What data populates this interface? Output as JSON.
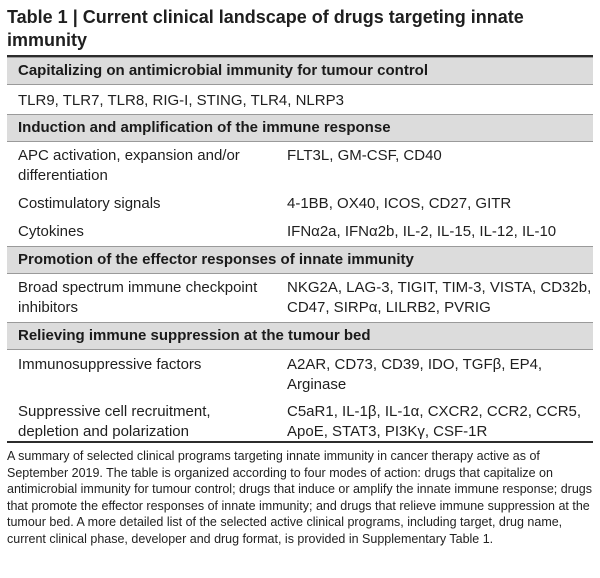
{
  "table": {
    "title": "Table 1 | Current clinical landscape of drugs targeting innate immunity",
    "sections": [
      {
        "heading": "Capitalizing on antimicrobial immunity for tumour control",
        "rows": [
          {
            "category": "",
            "agents": "TLR9, TLR7, TLR8, RIG-I, STING, TLR4, NLRP3"
          }
        ]
      },
      {
        "heading": "Induction and amplification of the immune response",
        "rows": [
          {
            "category": "APC activation, expansion and/or differentiation",
            "agents": "FLT3L, GM-CSF, CD40"
          },
          {
            "category": "Costimulatory signals",
            "agents": "4-1BB, OX40, ICOS, CD27, GITR"
          },
          {
            "category": "Cytokines",
            "agents": "IFNα2a, IFNα2b, IL-2, IL-15, IL-12, IL-10"
          }
        ]
      },
      {
        "heading": "Promotion of the effector responses of innate immunity",
        "rows": [
          {
            "category": "Broad spectrum immune checkpoint inhibitors",
            "agents": "NKG2A, LAG-3, TIGIT, TIM-3, VISTA, CD32b, CD47, SIRPα, LILRB2, PVRIG"
          }
        ]
      },
      {
        "heading": "Relieving immune suppression at the tumour bed",
        "rows": [
          {
            "category": "Immunosuppressive factors",
            "agents": "A2AR, CD73, CD39, IDO, TGFβ, EP4, Arginase"
          },
          {
            "category": "Suppressive cell recruitment, depletion and polarization",
            "agents": "C5aR1, IL-1β, IL-1α, CXCR2, CCR2, CCR5, ApoE, STAT3, PI3Kγ, CSF-1R"
          }
        ]
      }
    ],
    "caption": "A summary of selected clinical programs targeting innate immunity in cancer therapy active as of September 2019. The table is organized according to four modes of action: drugs that capitalize on antimicrobial immunity for tumour control; drugs that induce or amplify the innate immune response; drugs that promote the effector responses of innate immunity; and drugs that relieve immune suppression at the tumour bed. A more detailed list of the selected active clinical programs, including target, drug name, current clinical phase, developer and drug format, is provided in Supplementary Table 1."
  }
}
